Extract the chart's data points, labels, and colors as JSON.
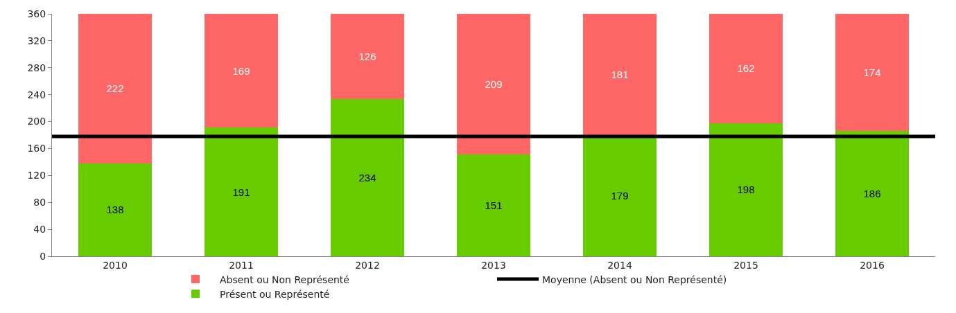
{
  "chart_data": {
    "type": "bar",
    "stacked": true,
    "categories": [
      "2010",
      "2011",
      "2012",
      "2013",
      "2014",
      "2015",
      "2016"
    ],
    "series": [
      {
        "name": "Présent ou Représenté",
        "color": "#66cc00",
        "values": [
          138,
          191,
          234,
          151,
          179,
          198,
          186
        ]
      },
      {
        "name": "Absent ou Non Représenté",
        "color": "#ff6666",
        "values": [
          222,
          169,
          126,
          209,
          181,
          162,
          174
        ]
      }
    ],
    "ref_lines": [
      {
        "axis": "y",
        "value": 178,
        "label": "Moyenne (Absent ou Non Représenté)",
        "color": "#000000",
        "line_style": "solid"
      }
    ],
    "ylim": [
      0,
      360
    ],
    "yticks": [
      0,
      40,
      80,
      120,
      160,
      200,
      240,
      280,
      320,
      360
    ],
    "data_labels": true,
    "grid": false,
    "legend": "bottom"
  }
}
